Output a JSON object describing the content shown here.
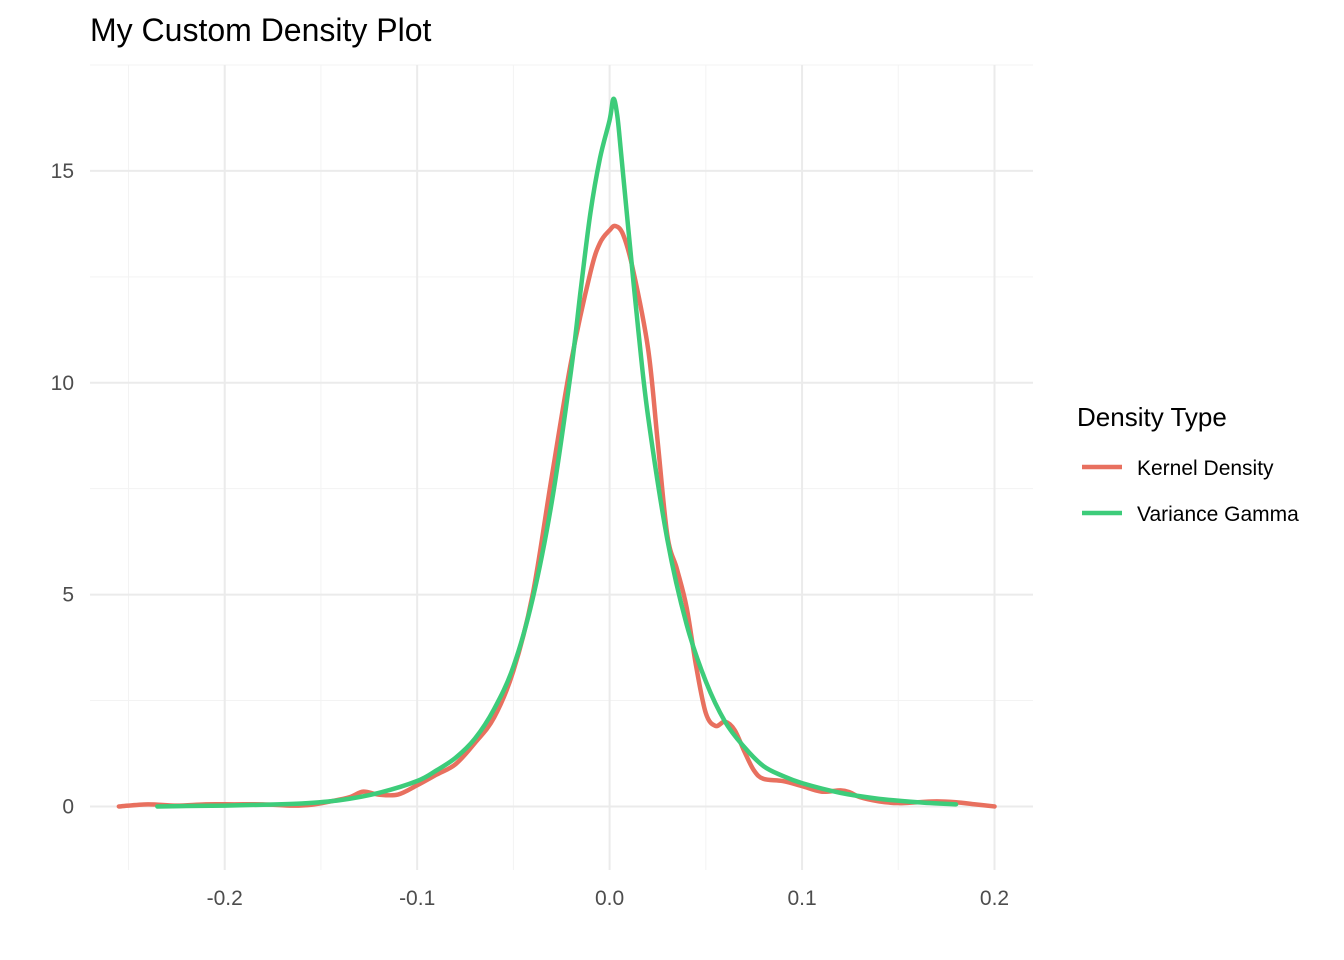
{
  "chart_data": {
    "type": "line",
    "title": "My Custom Density Plot",
    "xlabel": "",
    "ylabel": "",
    "xlim": [
      -0.27,
      0.22
    ],
    "ylim": [
      -1.5,
      17.5
    ],
    "x_ticks": [
      -0.2,
      -0.1,
      0.0,
      0.1,
      0.2
    ],
    "x_tick_labels": [
      "-0.2",
      "-0.1",
      "0.0",
      "0.1",
      "0.2"
    ],
    "y_ticks": [
      0,
      5,
      10,
      15
    ],
    "y_tick_labels": [
      "0",
      "5",
      "10",
      "15"
    ],
    "grid": true,
    "legend": {
      "title": "Density Type",
      "placement": "right"
    },
    "series": [
      {
        "name": "Kernel Density",
        "color": "#E8705F",
        "x": [
          -0.255,
          -0.24,
          -0.225,
          -0.21,
          -0.195,
          -0.18,
          -0.165,
          -0.155,
          -0.145,
          -0.135,
          -0.128,
          -0.12,
          -0.11,
          -0.1,
          -0.09,
          -0.08,
          -0.07,
          -0.06,
          -0.05,
          -0.04,
          -0.03,
          -0.02,
          -0.01,
          -0.005,
          0.0,
          0.003,
          0.007,
          0.012,
          0.02,
          0.025,
          0.03,
          0.035,
          0.04,
          0.045,
          0.05,
          0.055,
          0.06,
          0.065,
          0.07,
          0.075,
          0.08,
          0.09,
          0.1,
          0.11,
          0.12,
          0.125,
          0.13,
          0.14,
          0.15,
          0.16,
          0.17,
          0.18,
          0.19,
          0.2
        ],
        "values": [
          0.0,
          0.05,
          0.02,
          0.05,
          0.05,
          0.05,
          0.02,
          0.04,
          0.12,
          0.22,
          0.35,
          0.28,
          0.28,
          0.5,
          0.75,
          1.0,
          1.5,
          2.1,
          3.2,
          5.0,
          7.8,
          10.5,
          12.6,
          13.3,
          13.6,
          13.7,
          13.5,
          12.7,
          10.8,
          8.6,
          6.4,
          5.6,
          4.7,
          3.3,
          2.2,
          1.9,
          2.0,
          1.8,
          1.3,
          0.85,
          0.65,
          0.6,
          0.48,
          0.35,
          0.38,
          0.33,
          0.22,
          0.12,
          0.08,
          0.1,
          0.12,
          0.1,
          0.05,
          0.0
        ]
      },
      {
        "name": "Variance Gamma",
        "color": "#3DCC7A",
        "x": [
          -0.235,
          -0.22,
          -0.2,
          -0.18,
          -0.16,
          -0.14,
          -0.12,
          -0.1,
          -0.09,
          -0.08,
          -0.07,
          -0.06,
          -0.05,
          -0.04,
          -0.03,
          -0.02,
          -0.015,
          -0.01,
          -0.005,
          0.0,
          0.002,
          0.004,
          0.006,
          0.01,
          0.015,
          0.02,
          0.03,
          0.04,
          0.05,
          0.06,
          0.07,
          0.08,
          0.09,
          0.1,
          0.12,
          0.14,
          0.16,
          0.18
        ],
        "values": [
          0.0,
          0.01,
          0.02,
          0.04,
          0.07,
          0.15,
          0.32,
          0.6,
          0.85,
          1.15,
          1.6,
          2.3,
          3.3,
          4.9,
          7.2,
          10.3,
          12.2,
          14.0,
          15.3,
          16.2,
          16.7,
          16.3,
          15.4,
          13.5,
          11.2,
          9.2,
          6.3,
          4.3,
          2.95,
          2.0,
          1.4,
          0.95,
          0.72,
          0.55,
          0.32,
          0.18,
          0.1,
          0.05
        ]
      }
    ]
  }
}
